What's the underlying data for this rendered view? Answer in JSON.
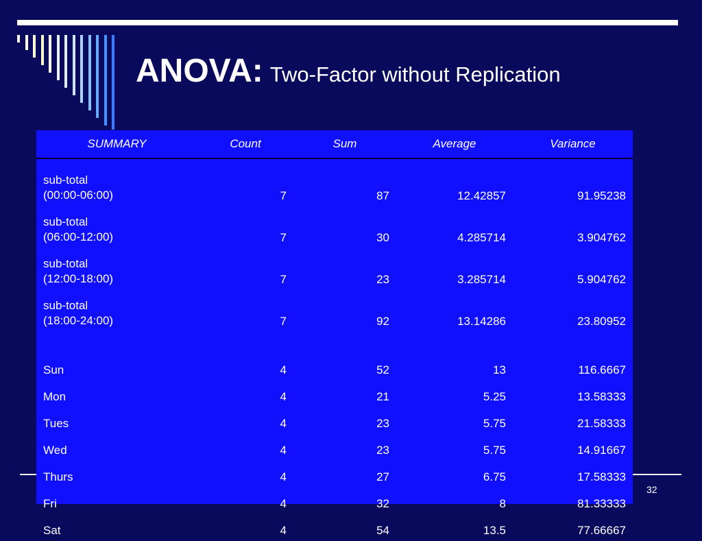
{
  "slide": {
    "title_main": "ANOVA:",
    "title_sub": "Two-Factor without Replication",
    "slide_number": "32"
  },
  "table": {
    "headers": [
      "SUMMARY",
      "Count",
      "Sum",
      "Average",
      "Variance"
    ],
    "subtotals": [
      {
        "label_line1": "sub-total",
        "label_line2": "(00:00-06:00)",
        "count": "7",
        "sum": "87",
        "average": "12.42857",
        "variance": "91.95238"
      },
      {
        "label_line1": "sub-total",
        "label_line2": "(06:00-12:00)",
        "count": "7",
        "sum": "30",
        "average": "4.285714",
        "variance": "3.904762"
      },
      {
        "label_line1": "sub-total",
        "label_line2": "(12:00-18:00)",
        "count": "7",
        "sum": "23",
        "average": "3.285714",
        "variance": "5.904762"
      },
      {
        "label_line1": "sub-total",
        "label_line2": "(18:00-24:00)",
        "count": "7",
        "sum": "92",
        "average": "13.14286",
        "variance": "23.80952"
      }
    ],
    "days": [
      {
        "label": "Sun",
        "count": "4",
        "sum": "52",
        "average": "13",
        "variance": "116.6667"
      },
      {
        "label": "Mon",
        "count": "4",
        "sum": "21",
        "average": "5.25",
        "variance": "13.58333"
      },
      {
        "label": "Tues",
        "count": "4",
        "sum": "23",
        "average": "5.75",
        "variance": "21.58333"
      },
      {
        "label": "Wed",
        "count": "4",
        "sum": "23",
        "average": "5.75",
        "variance": "14.91667"
      },
      {
        "label": "Thurs",
        "count": "4",
        "sum": "27",
        "average": "6.75",
        "variance": "17.58333"
      },
      {
        "label": "Fri",
        "count": "4",
        "sum": "32",
        "average": "8",
        "variance": "81.33333"
      },
      {
        "label": "Sat",
        "count": "4",
        "sum": "54",
        "average": "13.5",
        "variance": "77.66667"
      }
    ]
  },
  "colors": {
    "background": "#0a0a5c",
    "table_fill": "#1010ff",
    "text": "#ffffff"
  }
}
